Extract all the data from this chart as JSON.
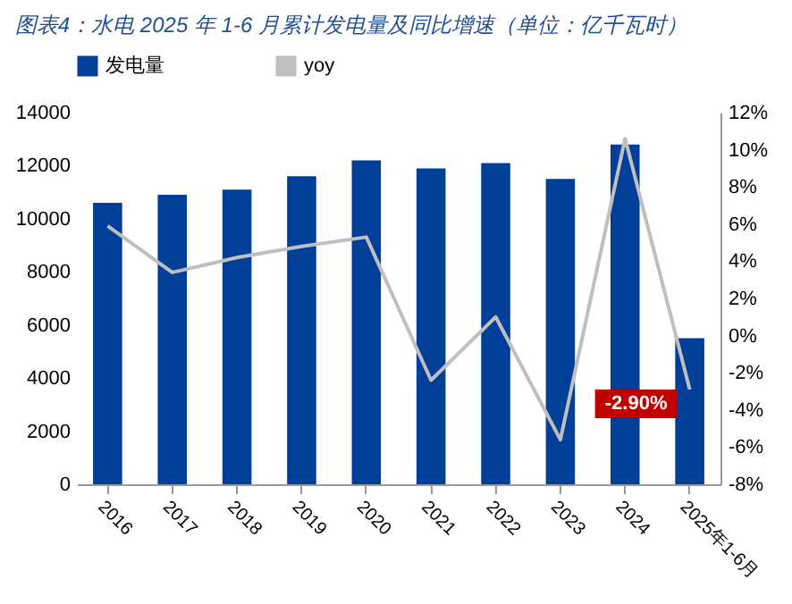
{
  "chart_data": {
    "type": "bar",
    "title": "图表4：水电 2025 年 1-6 月累计发电量及同比增速（单位：亿千瓦时）",
    "categories": [
      "2016",
      "2017",
      "2018",
      "2019",
      "2020",
      "2021",
      "2022",
      "2023",
      "2024",
      "2025年1-6月"
    ],
    "series": [
      {
        "name": "发电量",
        "color": "#003f98",
        "values": [
          10600,
          10900,
          11100,
          11600,
          12200,
          11900,
          12100,
          11500,
          12800,
          5500
        ]
      },
      {
        "name": "yoy",
        "type": "line",
        "axis": "y2",
        "color": "#bfbfbf",
        "values": [
          5.9,
          3.4,
          4.2,
          4.8,
          5.3,
          -2.4,
          1.0,
          -5.6,
          10.6,
          -2.9
        ],
        "value_labels": [
          null,
          null,
          null,
          null,
          null,
          null,
          null,
          null,
          null,
          "-2.90%"
        ]
      }
    ],
    "ylim": [
      0,
      14000
    ],
    "yticks": [
      0,
      2000,
      4000,
      6000,
      8000,
      10000,
      12000,
      14000
    ],
    "y2lim": [
      -8,
      12
    ],
    "y2ticks": [
      {
        "value": -8,
        "label": "-8%"
      },
      {
        "value": -6,
        "label": "-6%"
      },
      {
        "value": -4,
        "label": "-4%"
      },
      {
        "value": -2,
        "label": "-2%"
      },
      {
        "value": 0,
        "label": "0%"
      },
      {
        "value": 2,
        "label": "2%"
      },
      {
        "value": 4,
        "label": "4%"
      },
      {
        "value": 6,
        "label": "6%"
      },
      {
        "value": 8,
        "label": "8%"
      },
      {
        "value": 10,
        "label": "10%"
      },
      {
        "value": 12,
        "label": "12%"
      }
    ],
    "grid": false,
    "legend": "top",
    "marker": "none"
  }
}
